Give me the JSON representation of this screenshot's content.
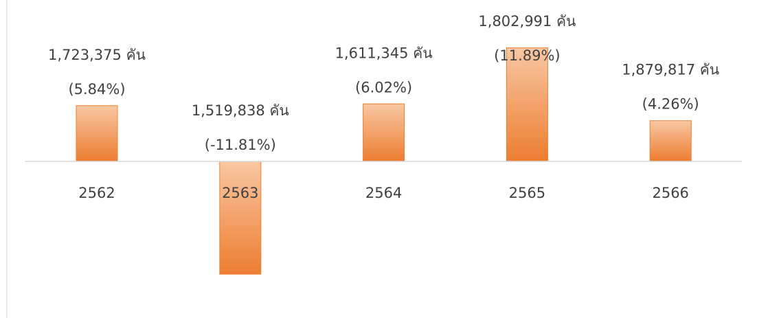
{
  "chart_data": {
    "type": "bar",
    "categories": [
      "2562",
      "2563",
      "2564",
      "2565",
      "2566"
    ],
    "values": [
      5.84,
      -11.81,
      6.02,
      11.89,
      4.26
    ],
    "value_labels": [
      "(5.84%)",
      "(-11.81%)",
      "(6.02%)",
      "(11.89%)",
      "(4.26%)"
    ],
    "totals": [
      "1,723,375 คัน",
      "1,519,838 คัน",
      "1,611,345 คัน",
      "1,802,991 คัน",
      "1,879,817 คัน"
    ],
    "color": "#ed7d31",
    "ylim": [
      -16.4,
      16.9
    ]
  }
}
